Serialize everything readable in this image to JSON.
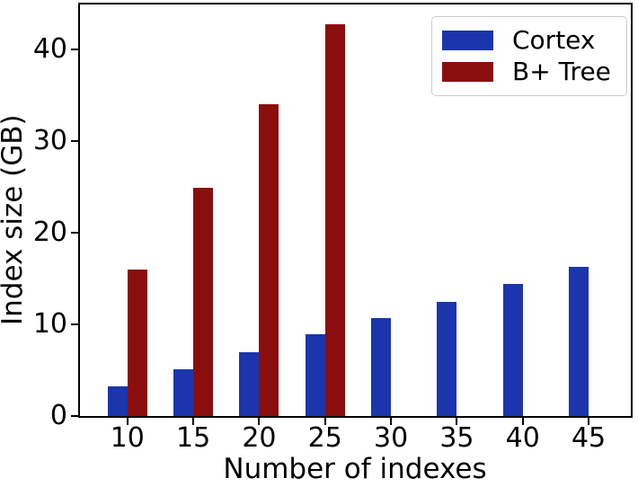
{
  "chart_data": {
    "type": "bar",
    "title": "",
    "xlabel": "Number of indexes",
    "ylabel": "Index size (GB)",
    "categories": [
      10,
      15,
      20,
      25,
      30,
      35,
      40,
      45
    ],
    "series": [
      {
        "name": "Cortex",
        "color": "#1b35ad",
        "values": [
          3.2,
          5.1,
          7.0,
          8.9,
          10.7,
          12.5,
          14.4,
          16.3
        ]
      },
      {
        "name": "B+ Tree",
        "color": "#8b0e0e",
        "values": [
          16.0,
          24.9,
          34.0,
          42.7,
          null,
          null,
          null,
          null
        ]
      }
    ],
    "bar_width_units": 1.5,
    "xlim": [
      6.4,
      48.2
    ],
    "ylim": [
      0,
      44.9
    ],
    "yticks": [
      0,
      10,
      20,
      30,
      40
    ],
    "grid": false,
    "legend_position": "upper right",
    "axis_color": "#000000",
    "background_color": "#ffffff"
  }
}
